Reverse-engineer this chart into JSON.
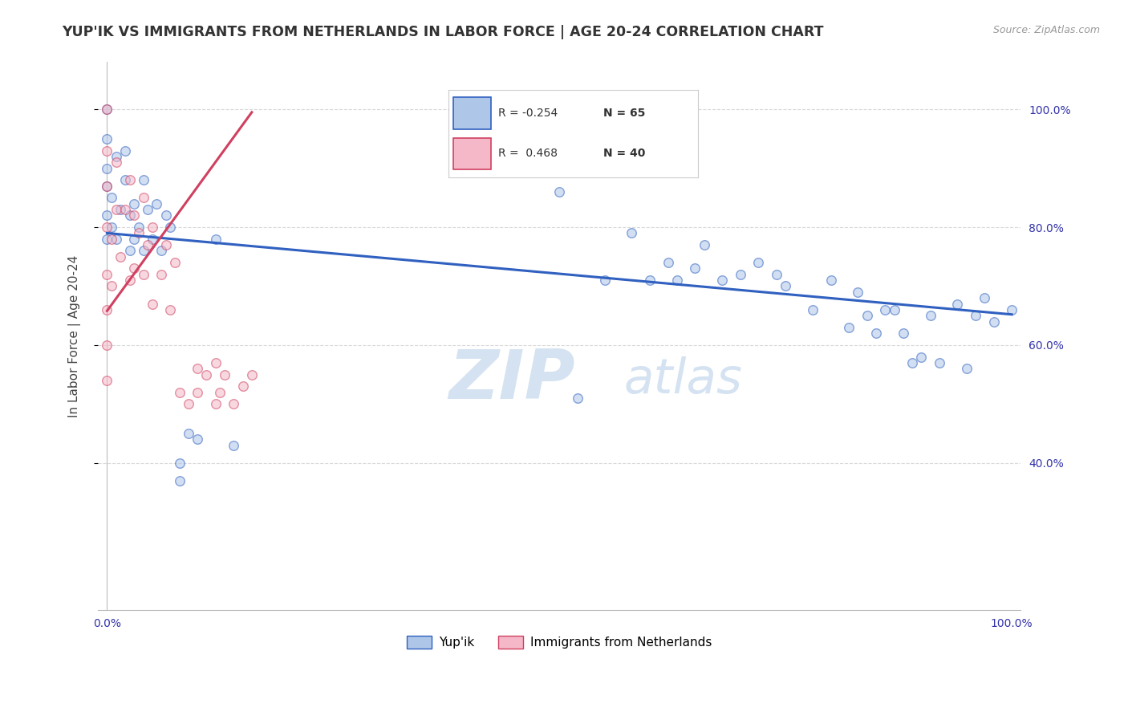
{
  "title": "YUP'IK VS IMMIGRANTS FROM NETHERLANDS IN LABOR FORCE | AGE 20-24 CORRELATION CHART",
  "source": "Source: ZipAtlas.com",
  "ylabel": "In Labor Force | Age 20-24",
  "xlim": [
    -0.01,
    1.01
  ],
  "ylim": [
    0.15,
    1.08
  ],
  "legend_blue_R": "-0.254",
  "legend_blue_N": "65",
  "legend_pink_R": "0.468",
  "legend_pink_N": "40",
  "blue_color": "#aec6e8",
  "pink_color": "#f4b8c8",
  "trendline_blue_color": "#3060c0",
  "trendline_pink_color": "#d04060",
  "watermark_zip": "ZIP",
  "watermark_atlas": "atlas",
  "watermark_color": "#d0dff0",
  "blue_label": "Yup'ik",
  "pink_label": "Immigrants from Netherlands",
  "blue_scatter_x": [
    0.0,
    0.0,
    0.0,
    0.0,
    0.0,
    0.0,
    0.005,
    0.005,
    0.01,
    0.01,
    0.015,
    0.02,
    0.02,
    0.025,
    0.025,
    0.03,
    0.03,
    0.035,
    0.04,
    0.04,
    0.045,
    0.05,
    0.055,
    0.06,
    0.065,
    0.07,
    0.08,
    0.08,
    0.09,
    0.1,
    0.12,
    0.14,
    0.5,
    0.52,
    0.55,
    0.58,
    0.6,
    0.62,
    0.63,
    0.65,
    0.66,
    0.68,
    0.7,
    0.72,
    0.74,
    0.75,
    0.78,
    0.8,
    0.82,
    0.83,
    0.84,
    0.85,
    0.86,
    0.87,
    0.88,
    0.89,
    0.9,
    0.91,
    0.92,
    0.94,
    0.95,
    0.96,
    0.97,
    0.98,
    1.0
  ],
  "blue_scatter_y": [
    0.78,
    0.82,
    0.87,
    0.9,
    0.95,
    1.0,
    0.8,
    0.85,
    0.78,
    0.92,
    0.83,
    0.88,
    0.93,
    0.76,
    0.82,
    0.78,
    0.84,
    0.8,
    0.76,
    0.88,
    0.83,
    0.78,
    0.84,
    0.76,
    0.82,
    0.8,
    0.37,
    0.4,
    0.45,
    0.44,
    0.78,
    0.43,
    0.86,
    0.51,
    0.71,
    0.79,
    0.71,
    0.74,
    0.71,
    0.73,
    0.77,
    0.71,
    0.72,
    0.74,
    0.72,
    0.7,
    0.66,
    0.71,
    0.63,
    0.69,
    0.65,
    0.62,
    0.66,
    0.66,
    0.62,
    0.57,
    0.58,
    0.65,
    0.57,
    0.67,
    0.56,
    0.65,
    0.68,
    0.64,
    0.66
  ],
  "pink_scatter_x": [
    0.0,
    0.0,
    0.0,
    0.0,
    0.0,
    0.0,
    0.0,
    0.0,
    0.005,
    0.005,
    0.01,
    0.01,
    0.015,
    0.02,
    0.025,
    0.025,
    0.03,
    0.03,
    0.035,
    0.04,
    0.04,
    0.045,
    0.05,
    0.05,
    0.06,
    0.065,
    0.07,
    0.075,
    0.08,
    0.09,
    0.1,
    0.1,
    0.11,
    0.12,
    0.12,
    0.125,
    0.13,
    0.14,
    0.15,
    0.16
  ],
  "pink_scatter_y": [
    0.54,
    0.6,
    0.66,
    0.72,
    0.8,
    0.87,
    0.93,
    1.0,
    0.7,
    0.78,
    0.83,
    0.91,
    0.75,
    0.83,
    0.71,
    0.88,
    0.73,
    0.82,
    0.79,
    0.72,
    0.85,
    0.77,
    0.67,
    0.8,
    0.72,
    0.77,
    0.66,
    0.74,
    0.52,
    0.5,
    0.52,
    0.56,
    0.55,
    0.5,
    0.57,
    0.52,
    0.55,
    0.5,
    0.53,
    0.55
  ],
  "trendline_blue_y_start": 0.79,
  "trendline_blue_y_end": 0.652,
  "trendline_pink_x_end": 0.16,
  "trendline_pink_y_start": 0.658,
  "trendline_pink_y_end": 0.995,
  "grid_color": "#d8d8d8",
  "background_color": "#ffffff",
  "title_fontsize": 12.5,
  "axis_label_fontsize": 11,
  "tick_fontsize": 10,
  "marker_size": 70,
  "marker_alpha": 0.55,
  "marker_linewidth": 1.0
}
